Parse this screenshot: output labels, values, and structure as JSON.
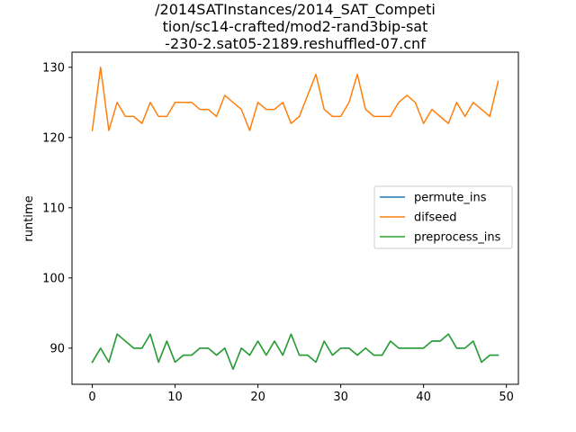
{
  "chart_data": {
    "type": "line",
    "title_lines": [
      "/2014SATInstances/2014_SAT_Competi",
      "tion/sc14-crafted/mod2-rand3bip-sat",
      "-230-2.sat05-2189.reshuffled-07.cnf"
    ],
    "xlabel": "",
    "ylabel": "runtime",
    "xlim": [
      -2.45,
      51.45
    ],
    "ylim": [
      84.85,
      132.15
    ],
    "xticks": [
      0,
      10,
      20,
      30,
      40,
      50
    ],
    "yticks": [
      90,
      100,
      110,
      120,
      130
    ],
    "grid": false,
    "legend_position": "center-right",
    "x": [
      0,
      1,
      2,
      3,
      4,
      5,
      6,
      7,
      8,
      9,
      10,
      11,
      12,
      13,
      14,
      15,
      16,
      17,
      18,
      19,
      20,
      21,
      22,
      23,
      24,
      25,
      26,
      27,
      28,
      29,
      30,
      31,
      32,
      33,
      34,
      35,
      36,
      37,
      38,
      39,
      40,
      41,
      42,
      43,
      44,
      45,
      46,
      47,
      48,
      49
    ],
    "series": [
      {
        "name": "permute_ins",
        "color": "#1f77b4",
        "values": [
          88,
          90,
          88,
          92,
          91,
          90,
          90,
          92,
          88,
          91,
          88,
          89,
          89,
          90,
          90,
          89,
          90,
          87,
          90,
          89,
          91,
          89,
          91,
          89,
          92,
          89,
          89,
          88,
          91,
          89,
          90,
          90,
          89,
          90,
          89,
          89,
          91,
          90,
          90,
          90,
          90,
          91,
          91,
          92,
          90,
          90,
          91,
          88,
          89,
          89
        ]
      },
      {
        "name": "difseed",
        "color": "#ff7f0e",
        "values": [
          121,
          130,
          121,
          125,
          123,
          123,
          122,
          125,
          123,
          123,
          125,
          125,
          125,
          124,
          124,
          123,
          126,
          125,
          124,
          121,
          125,
          124,
          124,
          125,
          122,
          123,
          126,
          129,
          124,
          123,
          123,
          125,
          129,
          124,
          123,
          123,
          123,
          125,
          126,
          125,
          122,
          124,
          123,
          122,
          125,
          123,
          125,
          124,
          123,
          128
        ]
      },
      {
        "name": "preprocess_ins",
        "color": "#2ca02c",
        "values": [
          88,
          90,
          88,
          92,
          91,
          90,
          90,
          92,
          88,
          91,
          88,
          89,
          89,
          90,
          90,
          89,
          90,
          87,
          90,
          89,
          91,
          89,
          91,
          89,
          92,
          89,
          89,
          88,
          91,
          89,
          90,
          90,
          89,
          90,
          89,
          89,
          91,
          90,
          90,
          90,
          90,
          91,
          91,
          92,
          90,
          90,
          91,
          88,
          89,
          89
        ]
      }
    ]
  }
}
